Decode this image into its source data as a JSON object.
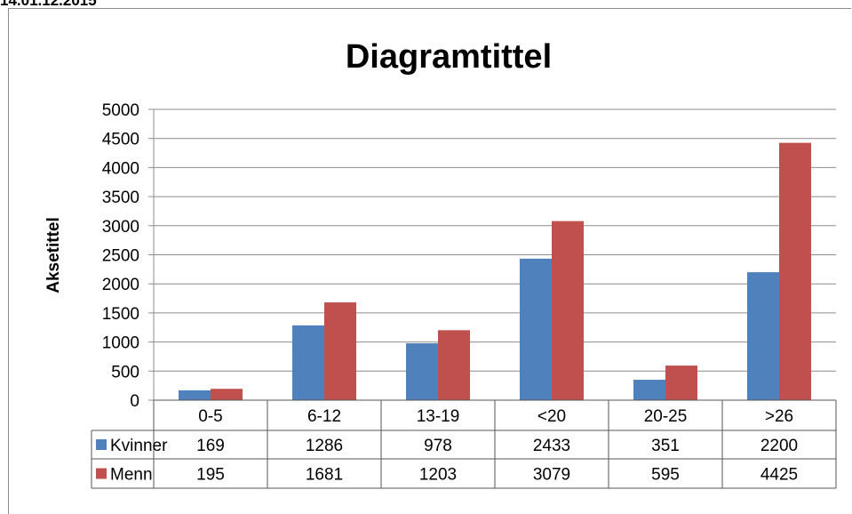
{
  "header_text": "14.01.12.2015",
  "chart_data": {
    "type": "bar",
    "title": "Diagramtittel",
    "xlabel": "",
    "ylabel": "Aksetittel",
    "categories": [
      "0-5",
      "6-12",
      "13-19",
      "<20",
      "20-25",
      ">26"
    ],
    "series": [
      {
        "name": "Kvinner",
        "color": "#4f81bd",
        "values": [
          169,
          1286,
          978,
          2433,
          351,
          2200
        ]
      },
      {
        "name": "Menn",
        "color": "#c0504d",
        "values": [
          195,
          1681,
          1203,
          3079,
          595,
          4425
        ]
      }
    ],
    "ylim": [
      0,
      5000
    ],
    "yticks": [
      0,
      500,
      1000,
      1500,
      2000,
      2500,
      3000,
      3500,
      4000,
      4500,
      5000
    ],
    "grid": true,
    "legend": "data-table"
  }
}
